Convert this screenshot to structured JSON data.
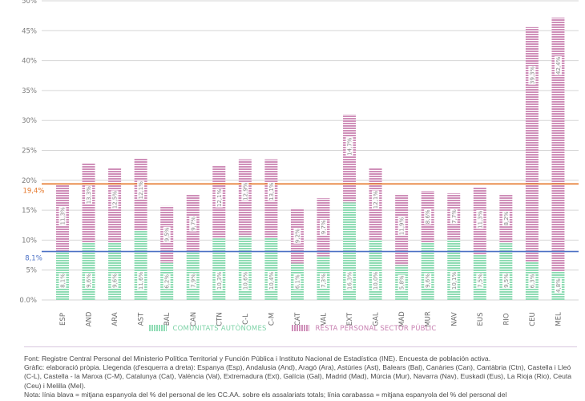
{
  "chart_data": {
    "type": "bar",
    "stacked": true,
    "title": "",
    "xlabel": "",
    "ylabel": "",
    "ylim": [
      0,
      50
    ],
    "yticks": [
      0,
      5,
      10,
      15,
      20,
      25,
      30,
      35,
      40,
      45,
      50
    ],
    "ytick_labels": [
      "0.0%",
      "5%",
      "10%",
      "15%",
      "20%",
      "25%",
      "30%",
      "35%",
      "40%",
      "45%",
      "50%"
    ],
    "grid": true,
    "categories": [
      "ESP",
      "AND",
      "ARA",
      "AST",
      "BAL",
      "CAN",
      "CTN",
      "C-L",
      "C-M",
      "CAT",
      "VAL",
      "EXT",
      "GAL",
      "MAD",
      "MUR",
      "NAV",
      "EUS",
      "RIO",
      "CEU",
      "MEL"
    ],
    "series": [
      {
        "name": "COMUNITATS AUTÒNOMES",
        "color": "#8fdcb4",
        "values": [
          8.1,
          9.6,
          9.6,
          11.6,
          6.2,
          7.9,
          10.3,
          10.6,
          10.4,
          6.1,
          7.3,
          16.3,
          10.0,
          5.8,
          9.6,
          10.1,
          7.5,
          9.5,
          6.3,
          4.8
        ],
        "labels": [
          "8,1%",
          "9,6%",
          "9,6%",
          "11,6%",
          "6,2%",
          "7,9%",
          "10,3%",
          "10,6%",
          "10,4%",
          "6,1%",
          "7,3%",
          "16,3%",
          "10,0%",
          "5,8%",
          "9,6%",
          "10,1%",
          "7,5%",
          "9,5%",
          "6,3%",
          "4,8%"
        ]
      },
      {
        "name": "RESTA PERSONAL SECTOR PÚBLIC",
        "color": "#cf8fb9",
        "values": [
          11.3,
          13.3,
          12.5,
          12.1,
          9.5,
          9.7,
          12.1,
          12.9,
          13.1,
          9.2,
          9.7,
          14.7,
          12.1,
          11.9,
          8.6,
          7.7,
          11.3,
          8.2,
          39.3,
          42.4
        ],
        "labels": [
          "11,3%",
          "13,3%",
          "12,5%",
          "12,1%",
          "9,5%",
          "9,7%",
          "12,1%",
          "12,9%",
          "13,1%",
          "9,2%",
          "9,7%",
          "14,7%",
          "12,1%",
          "11,9%",
          "8,6%",
          "7,7%",
          "11,3%",
          "8,2%",
          "39,3%",
          "42,4%"
        ]
      }
    ],
    "reference_lines": [
      {
        "name": "mitjana CC.AA.",
        "value": 8.1,
        "label": "8,1%",
        "color": "#4a6fc4"
      },
      {
        "name": "mitjana resta sector públic",
        "value": 19.4,
        "label": "19,4%",
        "color": "#e5772a"
      }
    ],
    "legend_position": "bottom"
  },
  "footer": {
    "lines": [
      "Font: Registre Central Personal del Ministerio Política Territorial y Función Pública i Instituto Nacional de Estadística (INE). Encuesta de población activa.",
      "Gràfic: elaboració pròpia. Llegenda (d'esquerra a dreta): Espanya (Esp), Andalusia (And), Aragó (Ara), Astúries (Ast), Balears (Bal), Canàries (Can), Cantàbria (Ctn), Castella i Lleó (C-L), Castella - la Manxa (C-M), Catalunya (Cat), València (Val), Extremadura (Ext), Galícia (Gal), Madrid (Mad), Múrcia (Mur), Navarra (Nav), Euskadi (Eus), La Rioja (Rio), Ceuta (Ceu) i Melilla (Mel).",
      "Nota: línia blava = mitjana espanyola del % del personal de les CC.AA. sobre els assalariats totals; línia carabassa = mitjana espanyola del % del personal del"
    ]
  }
}
